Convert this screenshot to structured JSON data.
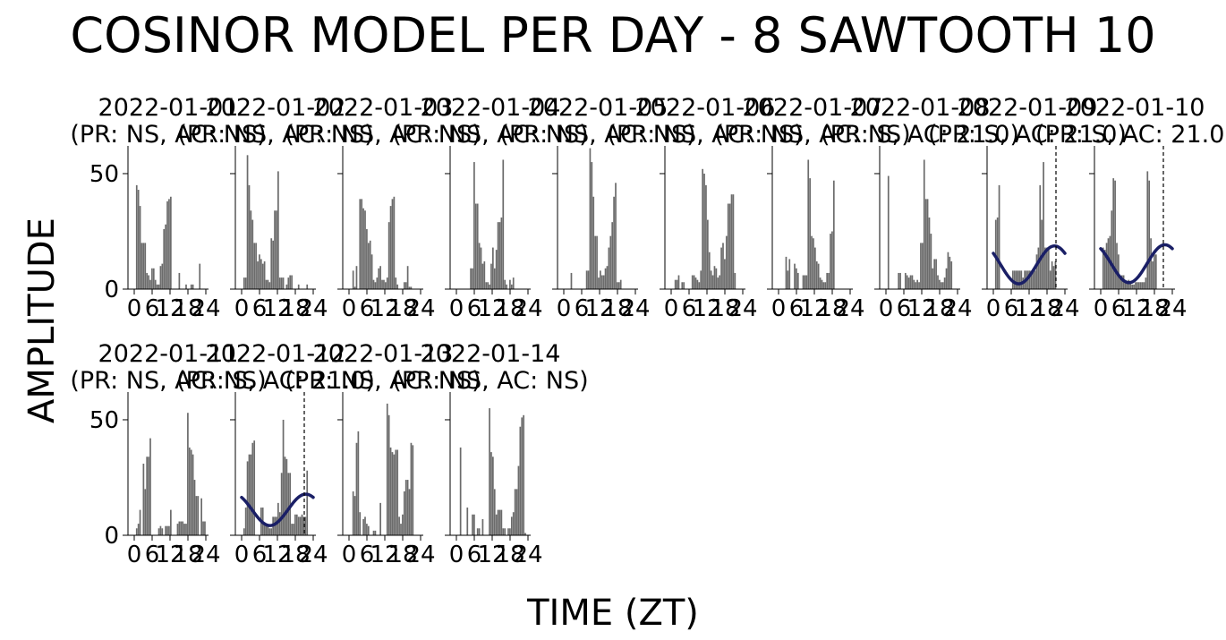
{
  "figure": {
    "title": "COSINOR MODEL PER DAY - 8 SAWTOOTH 10",
    "xlabel": "TIME (ZT)",
    "ylabel": "AMPLITUDE"
  },
  "colors": {
    "bar": "#6b6b6b",
    "fit": "#1a1f66",
    "axis": "#000000"
  },
  "chart_data": [
    {
      "type": "bar",
      "title": "2022-01-01",
      "subtitle": "(PR: NS, AC: NS)",
      "xticks": [
        0,
        6,
        12,
        18,
        24
      ],
      "yticks": [
        0,
        50
      ],
      "ylim": [
        0,
        62
      ],
      "xlim": [
        0,
        24
      ],
      "values": [
        0,
        45,
        43,
        36,
        20,
        20,
        20,
        7,
        6,
        4,
        9,
        9,
        4,
        2,
        2,
        10,
        11,
        26,
        28,
        38,
        39,
        40,
        0,
        0,
        0,
        0,
        7,
        0,
        0,
        0,
        2,
        0,
        0,
        2,
        2,
        0,
        0,
        0,
        11,
        0,
        0,
        0
      ]
    },
    {
      "type": "bar",
      "title": "2022-01-02",
      "subtitle": "(PR: NS, AC: NS)",
      "xticks": [
        0,
        6,
        12,
        18,
        24
      ],
      "yticks": [
        0,
        50
      ],
      "ylim": [
        0,
        62
      ],
      "xlim": [
        0,
        24
      ],
      "values": [
        0,
        5,
        5,
        58,
        45,
        34,
        30,
        20,
        20,
        12,
        15,
        13,
        11,
        12,
        4,
        4,
        3,
        22,
        21,
        34,
        34,
        51,
        5,
        5,
        5,
        0,
        2,
        5,
        6,
        6,
        0,
        0,
        0,
        2,
        0,
        0,
        0,
        0,
        2,
        0,
        0,
        0
      ]
    },
    {
      "type": "bar",
      "title": "2022-01-03",
      "subtitle": "(PR: NS, AC: NS)",
      "xticks": [
        0,
        6,
        12,
        18,
        24
      ],
      "yticks": [
        0,
        50
      ],
      "ylim": [
        0,
        62
      ],
      "xlim": [
        0,
        24
      ],
      "values": [
        0,
        0,
        8,
        1,
        10,
        0,
        39,
        39,
        35,
        34,
        26,
        20,
        21,
        15,
        4,
        3,
        5,
        9,
        10,
        4,
        4,
        3,
        5,
        29,
        36,
        39,
        40,
        5,
        2,
        0,
        0,
        0,
        3,
        3,
        10,
        1,
        1,
        0,
        0,
        0,
        0,
        0
      ]
    },
    {
      "type": "bar",
      "title": "2022-01-04",
      "subtitle": "(PR: NS, AC: NS)",
      "xticks": [
        0,
        6,
        12,
        18,
        24
      ],
      "yticks": [
        0,
        50
      ],
      "ylim": [
        0,
        62
      ],
      "xlim": [
        0,
        24
      ],
      "values": [
        0,
        0,
        0,
        0,
        0,
        0,
        0,
        0,
        9,
        9,
        55,
        37,
        37,
        20,
        18,
        11,
        12,
        3,
        3,
        2,
        11,
        18,
        9,
        17,
        29,
        29,
        31,
        56,
        4,
        2,
        0,
        4,
        2,
        5,
        0,
        0,
        0,
        0,
        0,
        0,
        0,
        0
      ]
    },
    {
      "type": "bar",
      "title": "2022-01-05",
      "subtitle": "(PR: NS, AC: NS)",
      "xticks": [
        0,
        6,
        12,
        18,
        24
      ],
      "yticks": [
        0,
        50
      ],
      "ylim": [
        0,
        62
      ],
      "xlim": [
        0,
        24
      ],
      "values": [
        0,
        0,
        0,
        0,
        7,
        0,
        0,
        0,
        0,
        0,
        0,
        0,
        0,
        8,
        8,
        61,
        55,
        40,
        23,
        23,
        5,
        8,
        6,
        6,
        9,
        10,
        18,
        23,
        29,
        40,
        46,
        3,
        3,
        4,
        0,
        0,
        0,
        0,
        0,
        0,
        0,
        0
      ]
    },
    {
      "type": "bar",
      "title": "2022-01-06",
      "subtitle": "(PR: NS, AC: NS)",
      "xticks": [
        0,
        6,
        12,
        18,
        24
      ],
      "yticks": [
        0,
        50
      ],
      "ylim": [
        0,
        62
      ],
      "xlim": [
        0,
        24
      ],
      "values": [
        0,
        0,
        4,
        4,
        6,
        0,
        3,
        3,
        0,
        0,
        0,
        0,
        6,
        6,
        5,
        4,
        3,
        8,
        52,
        50,
        45,
        30,
        16,
        8,
        6,
        10,
        9,
        5,
        6,
        18,
        20,
        13,
        23,
        37,
        37,
        41,
        41,
        7,
        0,
        0,
        0,
        0
      ]
    },
    {
      "type": "bar",
      "title": "2022-01-07",
      "subtitle": "(PR: NS, AC: NS)",
      "xticks": [
        0,
        6,
        12,
        18,
        24
      ],
      "yticks": [
        0,
        50
      ],
      "ylim": [
        0,
        62
      ],
      "xlim": [
        0,
        24
      ],
      "values": [
        0,
        0,
        0,
        0,
        14,
        8,
        13,
        0,
        0,
        11,
        9,
        7,
        0,
        0,
        6,
        6,
        6,
        56,
        48,
        23,
        22,
        18,
        12,
        11,
        5,
        4,
        3,
        3,
        7,
        7,
        24,
        25,
        47,
        0,
        0,
        0,
        0,
        0,
        0,
        0,
        0,
        0
      ]
    },
    {
      "type": "bar",
      "title": "2022-01-08",
      "subtitle": "(PR: S, AC: 21.0)",
      "xticks": [
        0,
        6,
        12,
        18,
        24
      ],
      "yticks": [
        0,
        50
      ],
      "ylim": [
        0,
        62
      ],
      "xlim": [
        0,
        24
      ],
      "values": [
        0,
        49,
        0,
        0,
        0,
        0,
        0,
        7,
        7,
        0,
        0,
        7,
        6,
        5,
        6,
        6,
        4,
        3,
        4,
        3,
        20,
        20,
        56,
        39,
        39,
        31,
        24,
        9,
        13,
        13,
        6,
        4,
        3,
        3,
        5,
        9,
        16,
        14,
        12,
        0,
        0,
        0
      ]
    },
    {
      "type": "bar",
      "title": "2022-01-09",
      "subtitle": "(PR: S, AC: 21.0)",
      "xticks": [
        0,
        6,
        12,
        18,
        24
      ],
      "yticks": [
        0,
        50
      ],
      "ylim": [
        0,
        62
      ],
      "xlim": [
        0,
        24
      ],
      "values": [
        0,
        30,
        31,
        45,
        0,
        0,
        0,
        0,
        0,
        0,
        0,
        8,
        8,
        8,
        8,
        8,
        8,
        5,
        8,
        8,
        8,
        8,
        8,
        8,
        8,
        15,
        18,
        45,
        30,
        55,
        18,
        18,
        18,
        8,
        12,
        10,
        12,
        0,
        0,
        0,
        0,
        0
      ],
      "fit": {
        "mesor": 10.5,
        "amplitude": 8.2,
        "acrophase_zt": 20.5,
        "range": [
          0,
          24
        ]
      },
      "acrophase_line": 21.0
    },
    {
      "type": "bar",
      "title": "2022-01-10",
      "subtitle": "(PR: S, AC: 21.0)",
      "xticks": [
        0,
        6,
        12,
        18,
        24
      ],
      "yticks": [
        0,
        50
      ],
      "ylim": [
        0,
        62
      ],
      "xlim": [
        0,
        24
      ],
      "values": [
        0,
        18,
        17,
        20,
        22,
        23,
        34,
        48,
        47,
        20,
        15,
        5,
        6,
        6,
        3,
        3,
        4,
        3,
        2,
        2,
        3,
        3,
        3,
        3,
        3,
        3,
        5,
        51,
        47,
        22,
        12,
        15,
        15,
        0,
        0,
        0,
        0,
        0,
        0,
        0,
        0,
        0
      ],
      "fit": {
        "mesor": 11,
        "amplitude": 8.2,
        "acrophase_zt": 21.5,
        "range": [
          0,
          24
        ]
      },
      "acrophase_line": 21.0
    },
    {
      "type": "bar",
      "title": "2022-01-11",
      "subtitle": "(PR: NS, AC: NS)",
      "xticks": [
        0,
        6,
        12,
        18,
        24
      ],
      "yticks": [
        0,
        50
      ],
      "ylim": [
        0,
        62
      ],
      "xlim": [
        0,
        24
      ],
      "values": [
        0,
        3,
        5,
        11,
        0,
        31,
        20,
        34,
        34,
        42,
        0,
        0,
        0,
        0,
        3,
        4,
        3,
        0,
        4,
        4,
        4,
        11,
        0,
        0,
        0,
        5,
        6,
        6,
        6,
        5,
        5,
        53,
        38,
        37,
        35,
        24,
        17,
        17,
        0,
        16,
        6,
        6
      ]
    },
    {
      "type": "bar",
      "title": "2022-01-12",
      "subtitle": "(PR: S, AC: 21.0)",
      "xticks": [
        0,
        6,
        12,
        18,
        24
      ],
      "yticks": [
        0,
        50
      ],
      "ylim": [
        0,
        62
      ],
      "xlim": [
        0,
        24
      ],
      "values": [
        0,
        3,
        12,
        32,
        35,
        35,
        40,
        41,
        0,
        0,
        0,
        12,
        12,
        5,
        5,
        4,
        3,
        3,
        8,
        8,
        8,
        14,
        10,
        27,
        50,
        34,
        33,
        27,
        27,
        5,
        5,
        9,
        9,
        8,
        8,
        9,
        8,
        8,
        28,
        0,
        0,
        0
      ],
      "fit": {
        "mesor": 11,
        "amplitude": 6.8,
        "acrophase_zt": 21.5,
        "range": [
          0,
          24
        ]
      },
      "acrophase_line": 21.0
    },
    {
      "type": "bar",
      "title": "2022-01-13",
      "subtitle": "(PR: NS, AC: NS)",
      "xticks": [
        0,
        6,
        12,
        18,
        24
      ],
      "yticks": [
        0,
        50
      ],
      "ylim": [
        0,
        62
      ],
      "xlim": [
        0,
        24
      ],
      "values": [
        0,
        0,
        19,
        17,
        40,
        45,
        10,
        0,
        7,
        8,
        5,
        4,
        0,
        0,
        2,
        2,
        0,
        0,
        14,
        0,
        0,
        0,
        57,
        52,
        38,
        36,
        35,
        37,
        37,
        8,
        5,
        9,
        19,
        24,
        24,
        20,
        40,
        39,
        0,
        0,
        0,
        0
      ]
    },
    {
      "type": "bar",
      "title": "2022-01-14",
      "subtitle": "(PR: NS, AC: NS)",
      "xticks": [
        0,
        6,
        12,
        18,
        24
      ],
      "yticks": [
        0,
        50
      ],
      "ylim": [
        0,
        62
      ],
      "xlim": [
        0,
        24
      ],
      "values": [
        0,
        0,
        38,
        0,
        0,
        0,
        12,
        0,
        0,
        9,
        9,
        0,
        3,
        3,
        0,
        7,
        0,
        0,
        0,
        55,
        36,
        34,
        20,
        9,
        11,
        11,
        11,
        3,
        3,
        0,
        3,
        3,
        8,
        10,
        20,
        20,
        30,
        47,
        51,
        52,
        1,
        0
      ]
    }
  ]
}
